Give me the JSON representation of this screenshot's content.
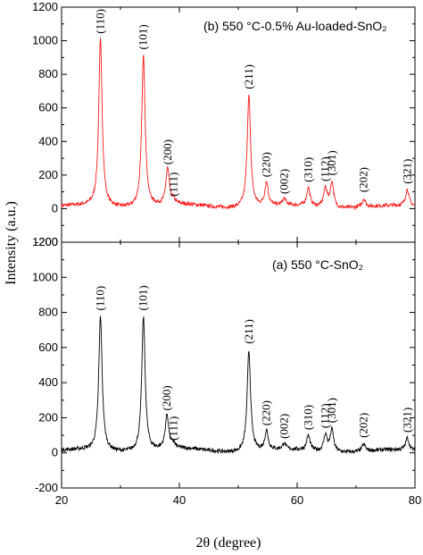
{
  "chart_data": {
    "type": "line",
    "xlabel": "2θ (degree)",
    "ylabel": "Intensity (a.u.)",
    "xlim": [
      20,
      80
    ],
    "xticks": [
      20,
      40,
      60,
      80
    ],
    "ylim": [
      -200,
      1200
    ],
    "yticks": [
      -200,
      0,
      200,
      400,
      600,
      800,
      1000,
      1200
    ],
    "panels": [
      {
        "id": "b",
        "position": "top",
        "title": "(b)  550 °C-0.5% Au-loaded-SnO₂",
        "series_color": "#ff1a1a",
        "ylim": [
          -200,
          1200
        ],
        "yticks": [
          -200,
          0,
          200,
          400,
          600,
          800,
          1000,
          1200
        ],
        "peaks": [
          {
            "x": 26.6,
            "y": 1010,
            "label": "(110)",
            "w": 0.35
          },
          {
            "x": 33.9,
            "y": 915,
            "label": "(101)",
            "w": 0.35
          },
          {
            "x": 38.0,
            "y": 230,
            "label": "(200)",
            "w": 0.35
          },
          {
            "x": 39.0,
            "y": 40,
            "label": "(111)",
            "w": 0.3
          },
          {
            "x": 51.8,
            "y": 680,
            "label": "(211)",
            "w": 0.35
          },
          {
            "x": 54.8,
            "y": 155,
            "label": "(220)",
            "w": 0.35
          },
          {
            "x": 57.8,
            "y": 55,
            "label": "(002)",
            "w": 0.35
          },
          {
            "x": 61.9,
            "y": 125,
            "label": "(310)",
            "w": 0.35
          },
          {
            "x": 64.8,
            "y": 130,
            "label": "(112)",
            "w": 0.35
          },
          {
            "x": 65.9,
            "y": 165,
            "label": "(301)",
            "w": 0.35
          },
          {
            "x": 71.3,
            "y": 65,
            "label": "(202)",
            "w": 0.35
          },
          {
            "x": 78.7,
            "y": 115,
            "label": "(321)",
            "w": 0.35
          }
        ]
      },
      {
        "id": "a",
        "position": "bottom",
        "title": "(a)   550 °C-SnO₂",
        "series_color": "#000000",
        "ylim": [
          -200,
          1200
        ],
        "yticks": [
          -200,
          0,
          200,
          400,
          600,
          800,
          1000,
          1200
        ],
        "peaks": [
          {
            "x": 26.6,
            "y": 780,
            "label": "(110)",
            "w": 0.35
          },
          {
            "x": 33.9,
            "y": 780,
            "label": "(101)",
            "w": 0.35
          },
          {
            "x": 37.9,
            "y": 210,
            "label": "(200)",
            "w": 0.35
          },
          {
            "x": 39.0,
            "y": 40,
            "label": "(111)",
            "w": 0.3
          },
          {
            "x": 51.8,
            "y": 590,
            "label": "(211)",
            "w": 0.35
          },
          {
            "x": 54.8,
            "y": 125,
            "label": "(220)",
            "w": 0.35
          },
          {
            "x": 57.8,
            "y": 50,
            "label": "(002)",
            "w": 0.35
          },
          {
            "x": 61.9,
            "y": 100,
            "label": "(310)",
            "w": 0.35
          },
          {
            "x": 64.8,
            "y": 110,
            "label": "(112)",
            "w": 0.35
          },
          {
            "x": 65.9,
            "y": 140,
            "label": "(301)",
            "w": 0.35
          },
          {
            "x": 71.3,
            "y": 55,
            "label": "(202)",
            "w": 0.35
          },
          {
            "x": 78.7,
            "y": 85,
            "label": "(321)",
            "w": 0.35
          }
        ]
      }
    ]
  }
}
